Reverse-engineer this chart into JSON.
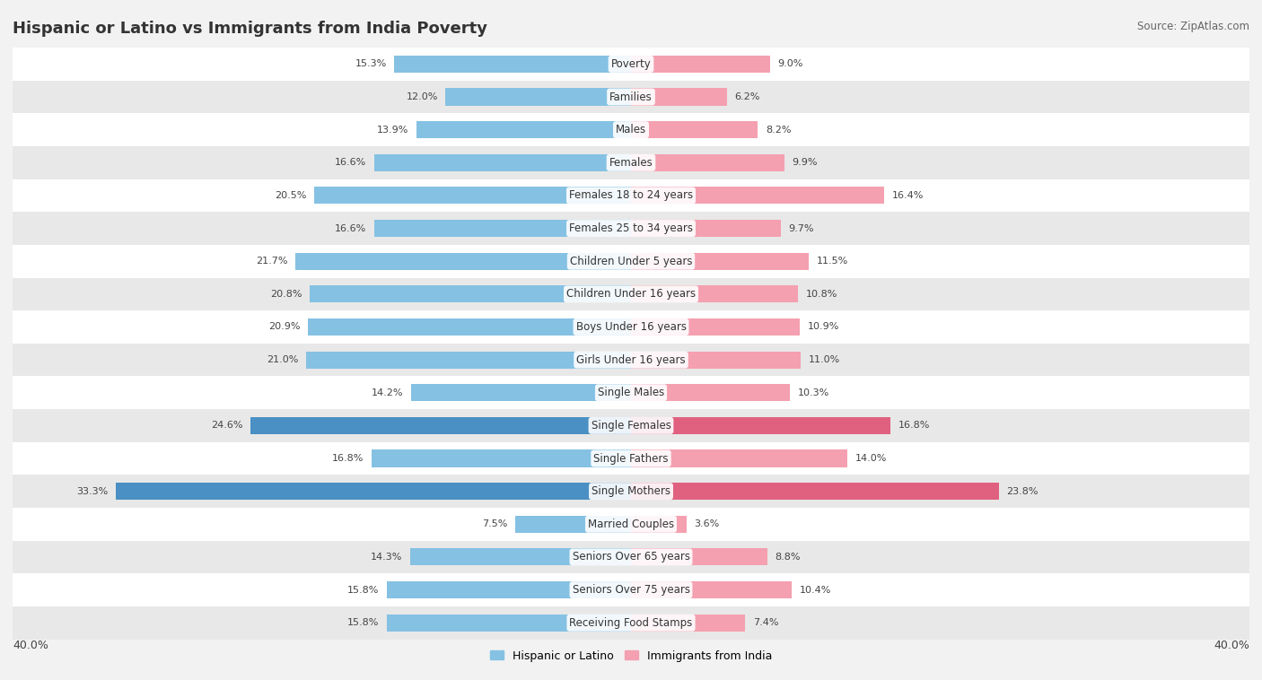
{
  "title": "Hispanic or Latino vs Immigrants from India Poverty",
  "source": "Source: ZipAtlas.com",
  "categories": [
    "Poverty",
    "Families",
    "Males",
    "Females",
    "Females 18 to 24 years",
    "Females 25 to 34 years",
    "Children Under 5 years",
    "Children Under 16 years",
    "Boys Under 16 years",
    "Girls Under 16 years",
    "Single Males",
    "Single Females",
    "Single Fathers",
    "Single Mothers",
    "Married Couples",
    "Seniors Over 65 years",
    "Seniors Over 75 years",
    "Receiving Food Stamps"
  ],
  "hispanic_values": [
    15.3,
    12.0,
    13.9,
    16.6,
    20.5,
    16.6,
    21.7,
    20.8,
    20.9,
    21.0,
    14.2,
    24.6,
    16.8,
    33.3,
    7.5,
    14.3,
    15.8,
    15.8
  ],
  "india_values": [
    9.0,
    6.2,
    8.2,
    9.9,
    16.4,
    9.7,
    11.5,
    10.8,
    10.9,
    11.0,
    10.3,
    16.8,
    14.0,
    23.8,
    3.6,
    8.8,
    10.4,
    7.4
  ],
  "hispanic_color": "#85C1E3",
  "india_color": "#F4A0B0",
  "highlight_hispanic": [
    "Single Females",
    "Single Mothers"
  ],
  "highlight_india": [
    "Single Females",
    "Single Mothers"
  ],
  "highlight_hispanic_color": "#4A90C4",
  "highlight_india_color": "#E06080",
  "axis_limit": 40.0,
  "legend_hispanic": "Hispanic or Latino",
  "legend_india": "Immigrants from India",
  "bar_height": 0.52,
  "bg_color": "#f2f2f2",
  "row_light": "#ffffff",
  "row_dark": "#e8e8e8"
}
